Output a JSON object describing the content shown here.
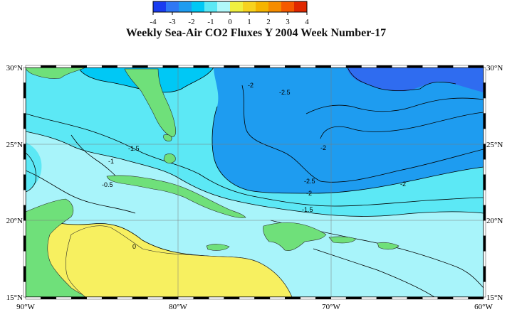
{
  "title": "Weekly Sea-Air CO2 Fluxes Y 2004 Week Number-17",
  "colorbar": {
    "tick_labels": [
      "-4",
      "-3",
      "-2",
      "-1",
      "0",
      "1",
      "2",
      "3",
      "4"
    ],
    "colors": [
      "#1a3cf0",
      "#2f78f5",
      "#1e9cf0",
      "#00c8f5",
      "#5ce8f5",
      "#b0f8fa",
      "#f0f040",
      "#f7d21e",
      "#f5b400",
      "#f58c00",
      "#f55a00",
      "#e02800"
    ]
  },
  "lat_labels": [
    "30°N",
    "25°N",
    "20°N",
    "15°N"
  ],
  "lon_labels": [
    "90°W",
    "80°W",
    "70°W",
    "60°W"
  ],
  "contour_labels": [
    "-2",
    "-2.5",
    "-1.5",
    "-1",
    "-0.5",
    "0",
    "-2.5",
    "-2",
    "-1.5",
    "-2",
    "-2"
  ],
  "extent": {
    "lon": [
      -90,
      -60
    ],
    "lat": [
      15,
      30
    ]
  },
  "colors": {
    "land": "#6fe07a",
    "ocean_light": "#a8f4fa",
    "ocean_mid": "#5ce8f5",
    "ocean_blue": "#1e9cf0",
    "ocean_dark": "#2f6cf0",
    "positive": "#f7f060"
  }
}
